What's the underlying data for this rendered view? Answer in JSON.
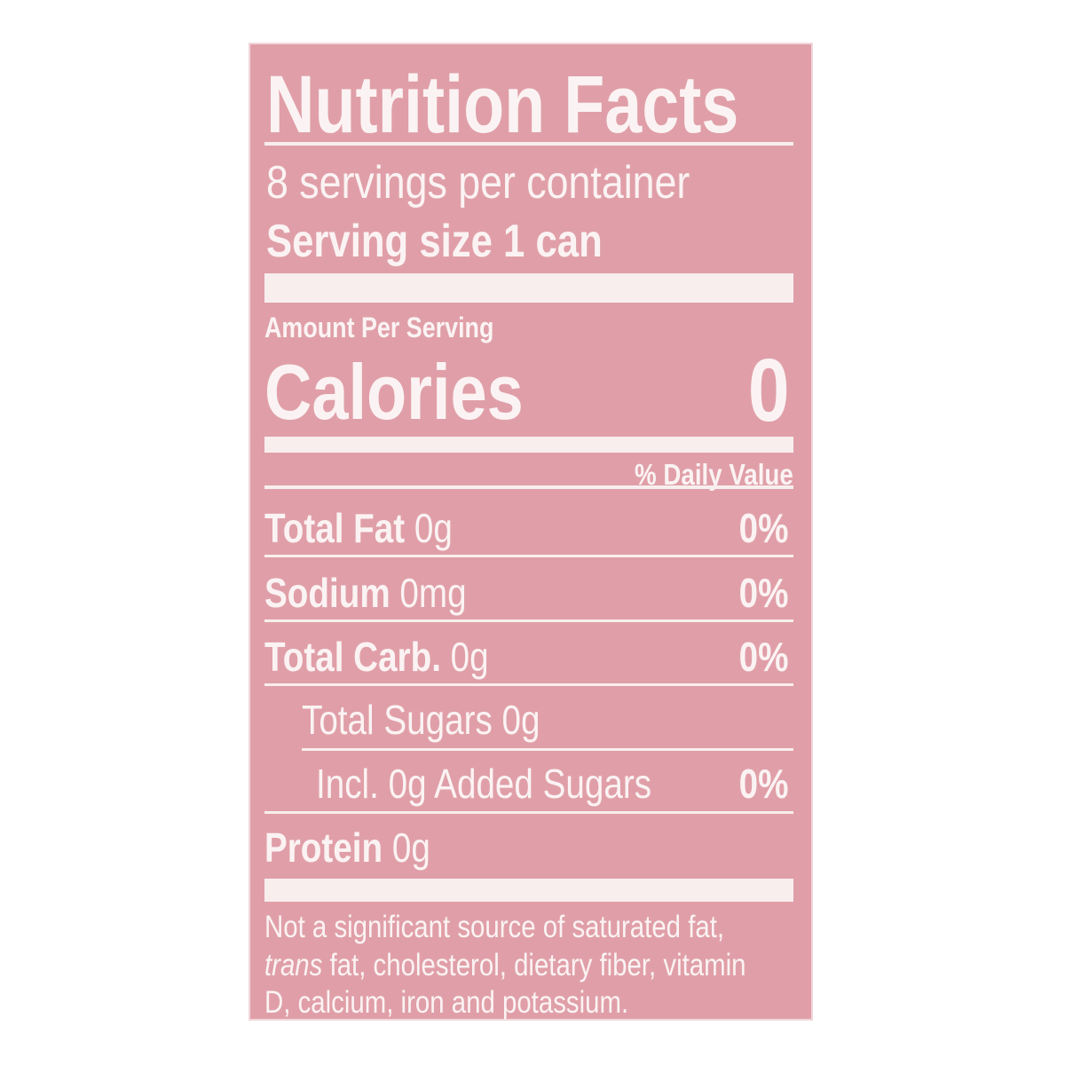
{
  "label": {
    "title": "Nutrition Facts",
    "servings_per_container": "8 servings per container",
    "serving_size_label": "Serving size",
    "serving_size_value": "1 can",
    "amount_per_serving": "Amount Per Serving",
    "calories_label": "Calories",
    "calories_value": "0",
    "daily_value_header": "% Daily Value",
    "rows": [
      {
        "name": "Total Fat",
        "amount": "0g",
        "dv": "0%"
      },
      {
        "name": "Sodium",
        "amount": "0mg",
        "dv": "0%"
      },
      {
        "name": "Total Carb.",
        "amount": "0g",
        "dv": "0%"
      },
      {
        "name": "Total Sugars 0g",
        "amount": "",
        "dv": ""
      },
      {
        "name": "Incl. 0g Added Sugars",
        "amount": "",
        "dv": "0%"
      },
      {
        "name": "Protein",
        "amount": "0g",
        "dv": ""
      }
    ],
    "footnote_1": "Not a significant source of saturated fat,",
    "footnote_2_italic": "trans",
    "footnote_2": " fat, cholesterol, dietary fiber, vitamin",
    "footnote_3": "D, calcium, iron and potassium."
  },
  "colors": {
    "panel": "#e09fa8",
    "text": "#fbf3f3"
  }
}
